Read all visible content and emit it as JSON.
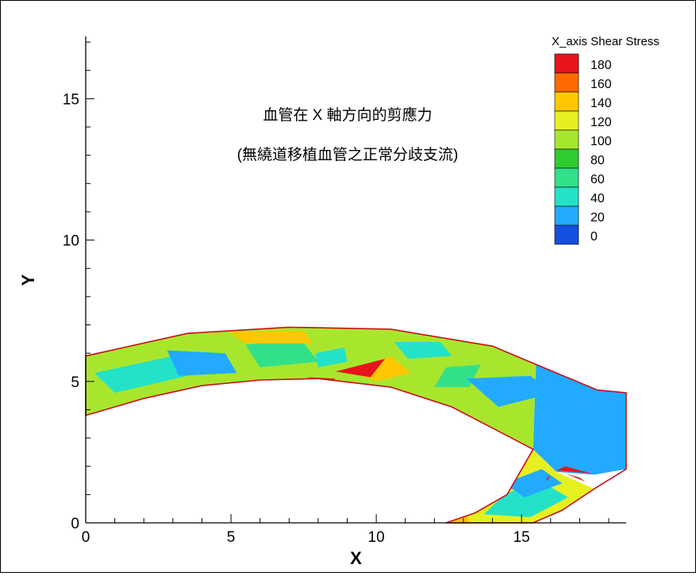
{
  "chart_data": {
    "type": "heatmap",
    "title": "",
    "xlabel": "X",
    "ylabel": "Y",
    "xlim": [
      0,
      18.6
    ],
    "ylim": [
      0,
      17.2
    ],
    "x_ticks": [
      0,
      5,
      10,
      15
    ],
    "y_ticks": [
      0,
      5,
      10,
      15
    ],
    "grid": false,
    "annotations": [
      "血管在 X 軸方向的剪應力",
      "(無繞道移植血管之正常分歧支流)"
    ],
    "legend": {
      "title": "X_axis Shear Stress",
      "placement": "top-right",
      "levels": [
        180,
        160,
        140,
        120,
        100,
        80,
        60,
        40,
        20,
        0
      ],
      "colors": [
        "#e8141c",
        "#ff6a00",
        "#ffc800",
        "#e6f020",
        "#a8e62e",
        "#2fcc2f",
        "#33e08a",
        "#24e2c8",
        "#22aaff",
        "#1450e0"
      ]
    },
    "domain_outline": [
      [
        0,
        3.8
      ],
      [
        2,
        4.4
      ],
      [
        4,
        4.85
      ],
      [
        6,
        5.05
      ],
      [
        8,
        5.1
      ],
      [
        10.5,
        4.8
      ],
      [
        12.6,
        4.1
      ],
      [
        14,
        3.35
      ],
      [
        15.4,
        2.6
      ],
      [
        14.5,
        1.0
      ],
      [
        13.4,
        0.35
      ],
      [
        12.4,
        0
      ],
      [
        15.4,
        0
      ],
      [
        16.4,
        0.45
      ],
      [
        17.5,
        1.2
      ],
      [
        18.6,
        1.9
      ],
      [
        18.6,
        4.6
      ],
      [
        17.6,
        4.7
      ],
      [
        15.5,
        5.6
      ],
      [
        14,
        6.25
      ],
      [
        10.5,
        6.85
      ],
      [
        7,
        6.92
      ],
      [
        3.5,
        6.7
      ],
      [
        0,
        5.9
      ]
    ],
    "regions": [
      {
        "value": 100,
        "points": [
          [
            0,
            3.8
          ],
          [
            2,
            4.4
          ],
          [
            4,
            4.85
          ],
          [
            6,
            5.05
          ],
          [
            8,
            5.1
          ],
          [
            10.5,
            4.8
          ],
          [
            12.6,
            4.1
          ],
          [
            14,
            3.35
          ],
          [
            15.4,
            2.6
          ],
          [
            15.5,
            5.6
          ],
          [
            14,
            6.25
          ],
          [
            10.5,
            6.85
          ],
          [
            7,
            6.92
          ],
          [
            3.5,
            6.7
          ],
          [
            0,
            5.9
          ]
        ]
      },
      {
        "value": 40,
        "points": [
          [
            0.3,
            5.3
          ],
          [
            3,
            5.9
          ],
          [
            3.5,
            5.2
          ],
          [
            1,
            4.6
          ]
        ]
      },
      {
        "value": 20,
        "points": [
          [
            2.8,
            6.1
          ],
          [
            4.8,
            6.0
          ],
          [
            5.2,
            5.3
          ],
          [
            3.2,
            5.2
          ]
        ]
      },
      {
        "value": 60,
        "points": [
          [
            5.5,
            6.3
          ],
          [
            7.4,
            6.5
          ],
          [
            8,
            5.7
          ],
          [
            6,
            5.5
          ]
        ]
      },
      {
        "value": 40,
        "points": [
          [
            7.9,
            6.0
          ],
          [
            8.9,
            6.2
          ],
          [
            9,
            5.7
          ],
          [
            8,
            5.5
          ]
        ]
      },
      {
        "value": 140,
        "points": [
          [
            4.9,
            6.75
          ],
          [
            7.5,
            6.8
          ],
          [
            7.8,
            6.35
          ],
          [
            5.5,
            6.35
          ]
        ]
      },
      {
        "value": 140,
        "points": [
          [
            9.2,
            5.35
          ],
          [
            10.5,
            5.9
          ],
          [
            11.2,
            5.3
          ],
          [
            10,
            5.0
          ]
        ]
      },
      {
        "value": 180,
        "points": [
          [
            8.6,
            5.35
          ],
          [
            10.3,
            5.8
          ],
          [
            9.8,
            5.15
          ]
        ]
      },
      {
        "value": 180,
        "points": [
          [
            7.6,
            5.15
          ],
          [
            8.6,
            5.1
          ],
          [
            8.4,
            4.95
          ]
        ]
      },
      {
        "value": 40,
        "points": [
          [
            10.6,
            6.4
          ],
          [
            12.2,
            6.4
          ],
          [
            12.6,
            5.9
          ],
          [
            11.1,
            5.8
          ]
        ]
      },
      {
        "value": 60,
        "points": [
          [
            12.4,
            5.5
          ],
          [
            13.6,
            5.6
          ],
          [
            13.2,
            4.8
          ],
          [
            12,
            4.8
          ]
        ]
      },
      {
        "value": 20,
        "points": [
          [
            13.1,
            5.1
          ],
          [
            15.3,
            5.2
          ],
          [
            16.1,
            4.6
          ],
          [
            14.2,
            4.1
          ]
        ]
      },
      {
        "value": 20,
        "points": [
          [
            15.4,
            2.6
          ],
          [
            15.5,
            5.6
          ],
          [
            17.6,
            4.7
          ],
          [
            18.6,
            4.6
          ],
          [
            18.6,
            1.9
          ],
          [
            17.5,
            1.7
          ],
          [
            16.2,
            1.8
          ]
        ]
      },
      {
        "value": 120,
        "points": [
          [
            12.4,
            0
          ],
          [
            13.4,
            0.35
          ],
          [
            14.5,
            1.0
          ],
          [
            15.4,
            2.6
          ],
          [
            16.2,
            1.8
          ],
          [
            17.5,
            1.2
          ],
          [
            16.4,
            0.45
          ],
          [
            15.4,
            0
          ]
        ]
      },
      {
        "value": 40,
        "points": [
          [
            13.7,
            0.3
          ],
          [
            15.3,
            0.2
          ],
          [
            16.6,
            0.9
          ],
          [
            15.6,
            1.5
          ],
          [
            14.4,
            1.0
          ]
        ]
      },
      {
        "value": 20,
        "points": [
          [
            14.4,
            1.4
          ],
          [
            15.7,
            1.9
          ],
          [
            16.4,
            1.4
          ],
          [
            15.1,
            0.9
          ]
        ]
      },
      {
        "value": 140,
        "points": [
          [
            12.6,
            0
          ],
          [
            13.2,
            0
          ],
          [
            13.1,
            0.5
          ],
          [
            12.8,
            0.6
          ]
        ]
      },
      {
        "value": 180,
        "points": [
          [
            16.2,
            1.85
          ],
          [
            17.4,
            1.75
          ],
          [
            16.5,
            2.0
          ]
        ]
      },
      {
        "value": 180,
        "points": [
          [
            16.5,
            1.75
          ],
          [
            17.2,
            1.45
          ],
          [
            17.0,
            1.6
          ]
        ]
      },
      {
        "value": 180,
        "points": [
          [
            15.85,
            1.55
          ],
          [
            16.0,
            1.7
          ],
          [
            15.9,
            1.5
          ]
        ]
      }
    ]
  }
}
